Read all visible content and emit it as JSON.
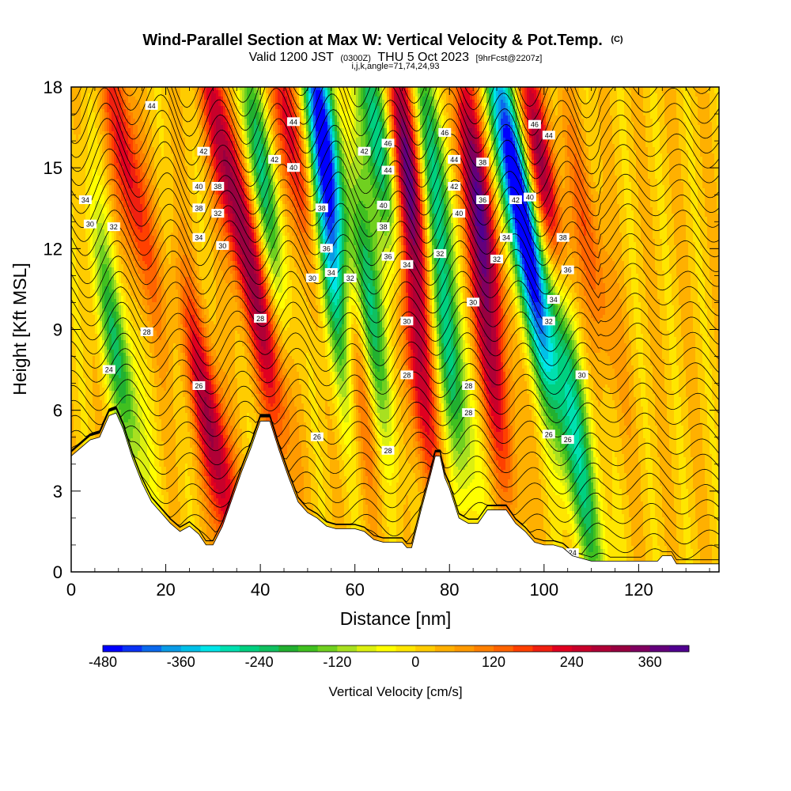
{
  "chart_data": {
    "type": "heatmap",
    "title": "Wind-Parallel Section at Max W: Vertical Velocity & Pot.Temp.",
    "title_mark": "(C)",
    "subtitle": {
      "prefix": "Valid 1200 JST",
      "utc": "(0300Z)",
      "date": "THU 5 Oct 2023",
      "forecast": "[9hrFcst@2207z]"
    },
    "info_line": "i,j,k,angle=71,74,24,93",
    "xlabel": "Distance [nm]",
    "ylabel": "Height [Kft MSL]",
    "xlim": [
      0,
      137
    ],
    "ylim": [
      0,
      18
    ],
    "x_ticks": [
      "0",
      "20",
      "40",
      "60",
      "80",
      "100",
      "120"
    ],
    "x_tick_values": [
      0,
      20,
      40,
      60,
      80,
      100,
      120
    ],
    "y_ticks": [
      "0",
      "3",
      "6",
      "9",
      "12",
      "15",
      "18"
    ],
    "y_tick_values": [
      0,
      3,
      6,
      9,
      12,
      15,
      18
    ],
    "colorbar": {
      "title": "Vertical Velocity [cm/s]",
      "min": -480,
      "max": 420,
      "step": 30,
      "tick_labels": [
        "-480",
        "-360",
        "-240",
        "-120",
        "0",
        "120",
        "240",
        "360"
      ],
      "tick_values": [
        -480,
        -360,
        -240,
        -120,
        0,
        120,
        240,
        360
      ],
      "colors": [
        "#0000ff",
        "#0a32f5",
        "#0b69ec",
        "#0a9be6",
        "#00c0e8",
        "#00e5e8",
        "#00e0b0",
        "#00d080",
        "#10c060",
        "#22b030",
        "#40c020",
        "#70d020",
        "#a8e020",
        "#dcf010",
        "#ffff00",
        "#ffe600",
        "#ffcc00",
        "#ffb000",
        "#ff9a00",
        "#ff8000",
        "#ff6400",
        "#ff4000",
        "#f02010",
        "#e00020",
        "#c8002a",
        "#b00036",
        "#980040",
        "#800060",
        "#64007c",
        "#500090"
      ]
    },
    "vertical_velocity_series": [
      {
        "name": "updraft",
        "x": 12,
        "y": 15,
        "value": 220
      },
      {
        "name": "downdraft",
        "x": 10,
        "y": 8,
        "value": -230
      },
      {
        "name": "updraft",
        "x": 30,
        "y": 5,
        "value": 300
      },
      {
        "name": "updraft",
        "x": 33,
        "y": 15,
        "value": 280
      },
      {
        "name": "downdraft",
        "x": 40,
        "y": 15,
        "value": -250
      },
      {
        "name": "updraft",
        "x": 41,
        "y": 9,
        "value": 220
      },
      {
        "name": "updraft",
        "x": 47,
        "y": 16,
        "value": 250
      },
      {
        "name": "downdraft",
        "x": 53,
        "y": 16.5,
        "value": -470
      },
      {
        "name": "downdraft",
        "x": 55,
        "y": 11,
        "value": -300
      },
      {
        "name": "updraft",
        "x": 60,
        "y": 8,
        "value": 160
      },
      {
        "name": "downdraft",
        "x": 65,
        "y": 16,
        "value": -330
      },
      {
        "name": "downdraft",
        "x": 63,
        "y": 10,
        "value": -250
      },
      {
        "name": "updraft",
        "x": 71,
        "y": 15,
        "value": 360
      },
      {
        "name": "updraft",
        "x": 73,
        "y": 8,
        "value": 240
      },
      {
        "name": "downdraft",
        "x": 77,
        "y": 15,
        "value": -250
      },
      {
        "name": "downdraft",
        "x": 80,
        "y": 8,
        "value": -260
      },
      {
        "name": "updraft",
        "x": 86,
        "y": 14,
        "value": 330
      },
      {
        "name": "updraft",
        "x": 88,
        "y": 8,
        "value": 220
      },
      {
        "name": "downdraft",
        "x": 93,
        "y": 15.5,
        "value": -480
      },
      {
        "name": "updraft",
        "x": 99,
        "y": 15,
        "value": 330
      },
      {
        "name": "downdraft",
        "x": 98,
        "y": 10,
        "value": -280
      },
      {
        "name": "downdraft",
        "x": 104,
        "y": 9,
        "value": -220
      },
      {
        "name": "downdraft",
        "x": 108,
        "y": 3,
        "value": -200
      },
      {
        "name": "updraft",
        "x": 110,
        "y": 12,
        "value": 120
      }
    ],
    "terrain": {
      "x": [
        0,
        2,
        4,
        6,
        8,
        9.5,
        11,
        13,
        15,
        17,
        19,
        21,
        23,
        25,
        27,
        28.5,
        30,
        32,
        34,
        36,
        38,
        40,
        42,
        44,
        46,
        48,
        50,
        52,
        54,
        56,
        58,
        60,
        62,
        64,
        66,
        68,
        70,
        71,
        72,
        73,
        74,
        76,
        77,
        78,
        79,
        80,
        82,
        84,
        86,
        88,
        90,
        92,
        94,
        96,
        98,
        100,
        102,
        104,
        106,
        108,
        110,
        112,
        114,
        116,
        118,
        120,
        122,
        124,
        125,
        126,
        127,
        128,
        130,
        132,
        134,
        137
      ],
      "y": [
        4.3,
        4.6,
        4.9,
        5.0,
        5.8,
        5.9,
        5.3,
        4.2,
        3.3,
        2.6,
        2.2,
        1.8,
        1.5,
        1.7,
        1.4,
        1.0,
        1.0,
        1.7,
        2.7,
        3.7,
        4.6,
        5.6,
        5.6,
        4.5,
        3.5,
        2.6,
        2.2,
        2.0,
        1.7,
        1.6,
        1.6,
        1.6,
        1.5,
        1.2,
        1.1,
        1.1,
        1.1,
        0.9,
        0.9,
        1.6,
        2.3,
        3.6,
        4.3,
        4.3,
        3.5,
        3.1,
        2.0,
        1.8,
        1.8,
        2.3,
        2.3,
        2.3,
        1.8,
        1.5,
        1.1,
        1.0,
        1.0,
        0.9,
        0.6,
        0.5,
        0.4,
        0.4,
        0.4,
        0.4,
        0.4,
        0.4,
        0.4,
        0.4,
        0.6,
        0.6,
        0.6,
        0.3,
        0.3,
        0.3,
        0.3,
        0.3
      ]
    },
    "isotherm_labels": [
      {
        "text": "44",
        "x": 17,
        "y": 17.3
      },
      {
        "text": "42",
        "x": 28,
        "y": 15.6
      },
      {
        "text": "40",
        "x": 27,
        "y": 14.3
      },
      {
        "text": "38",
        "x": 27,
        "y": 13.5
      },
      {
        "text": "38",
        "x": 31,
        "y": 14.3
      },
      {
        "text": "32",
        "x": 31,
        "y": 13.3
      },
      {
        "text": "34",
        "x": 27,
        "y": 12.4
      },
      {
        "text": "30",
        "x": 32,
        "y": 12.1
      },
      {
        "text": "34",
        "x": 3,
        "y": 13.8
      },
      {
        "text": "30",
        "x": 4,
        "y": 12.9
      },
      {
        "text": "32",
        "x": 9,
        "y": 12.8
      },
      {
        "text": "28",
        "x": 16,
        "y": 8.9
      },
      {
        "text": "24",
        "x": 8,
        "y": 7.5
      },
      {
        "text": "26",
        "x": 27,
        "y": 6.9
      },
      {
        "text": "28",
        "x": 40,
        "y": 9.4
      },
      {
        "text": "42",
        "x": 43,
        "y": 15.3
      },
      {
        "text": "40",
        "x": 47,
        "y": 15.0
      },
      {
        "text": "44",
        "x": 47,
        "y": 16.7
      },
      {
        "text": "38",
        "x": 53,
        "y": 13.5
      },
      {
        "text": "36",
        "x": 54,
        "y": 12.0
      },
      {
        "text": "34",
        "x": 55,
        "y": 11.1
      },
      {
        "text": "30",
        "x": 51,
        "y": 10.9
      },
      {
        "text": "32",
        "x": 59,
        "y": 10.9
      },
      {
        "text": "26",
        "x": 52,
        "y": 5.0
      },
      {
        "text": "42",
        "x": 62,
        "y": 15.6
      },
      {
        "text": "46",
        "x": 67,
        "y": 15.9
      },
      {
        "text": "44",
        "x": 67,
        "y": 14.9
      },
      {
        "text": "40",
        "x": 66,
        "y": 13.6
      },
      {
        "text": "38",
        "x": 66,
        "y": 12.8
      },
      {
        "text": "36",
        "x": 67,
        "y": 11.7
      },
      {
        "text": "34",
        "x": 71,
        "y": 11.4
      },
      {
        "text": "30",
        "x": 71,
        "y": 9.3
      },
      {
        "text": "28",
        "x": 71,
        "y": 7.3
      },
      {
        "text": "28",
        "x": 67,
        "y": 4.5
      },
      {
        "text": "46",
        "x": 79,
        "y": 16.3
      },
      {
        "text": "44",
        "x": 81,
        "y": 15.3
      },
      {
        "text": "42",
        "x": 81,
        "y": 14.3
      },
      {
        "text": "40",
        "x": 82,
        "y": 13.3
      },
      {
        "text": "38",
        "x": 87,
        "y": 15.2
      },
      {
        "text": "36",
        "x": 87,
        "y": 13.8
      },
      {
        "text": "32",
        "x": 78,
        "y": 11.8
      },
      {
        "text": "30",
        "x": 85,
        "y": 10.0
      },
      {
        "text": "28",
        "x": 84,
        "y": 6.9
      },
      {
        "text": "28",
        "x": 84,
        "y": 5.9
      },
      {
        "text": "32",
        "x": 90,
        "y": 11.6
      },
      {
        "text": "34",
        "x": 92,
        "y": 12.4
      },
      {
        "text": "46",
        "x": 98,
        "y": 16.6
      },
      {
        "text": "44",
        "x": 101,
        "y": 16.2
      },
      {
        "text": "42",
        "x": 94,
        "y": 13.8
      },
      {
        "text": "40",
        "x": 97,
        "y": 13.9
      },
      {
        "text": "38",
        "x": 104,
        "y": 12.4
      },
      {
        "text": "36",
        "x": 105,
        "y": 11.2
      },
      {
        "text": "34",
        "x": 102,
        "y": 10.1
      },
      {
        "text": "32",
        "x": 101,
        "y": 9.3
      },
      {
        "text": "30",
        "x": 108,
        "y": 7.3
      },
      {
        "text": "26",
        "x": 101,
        "y": 5.1
      },
      {
        "text": "26",
        "x": 105,
        "y": 4.9
      },
      {
        "text": "24",
        "x": 106,
        "y": 0.7
      }
    ]
  }
}
